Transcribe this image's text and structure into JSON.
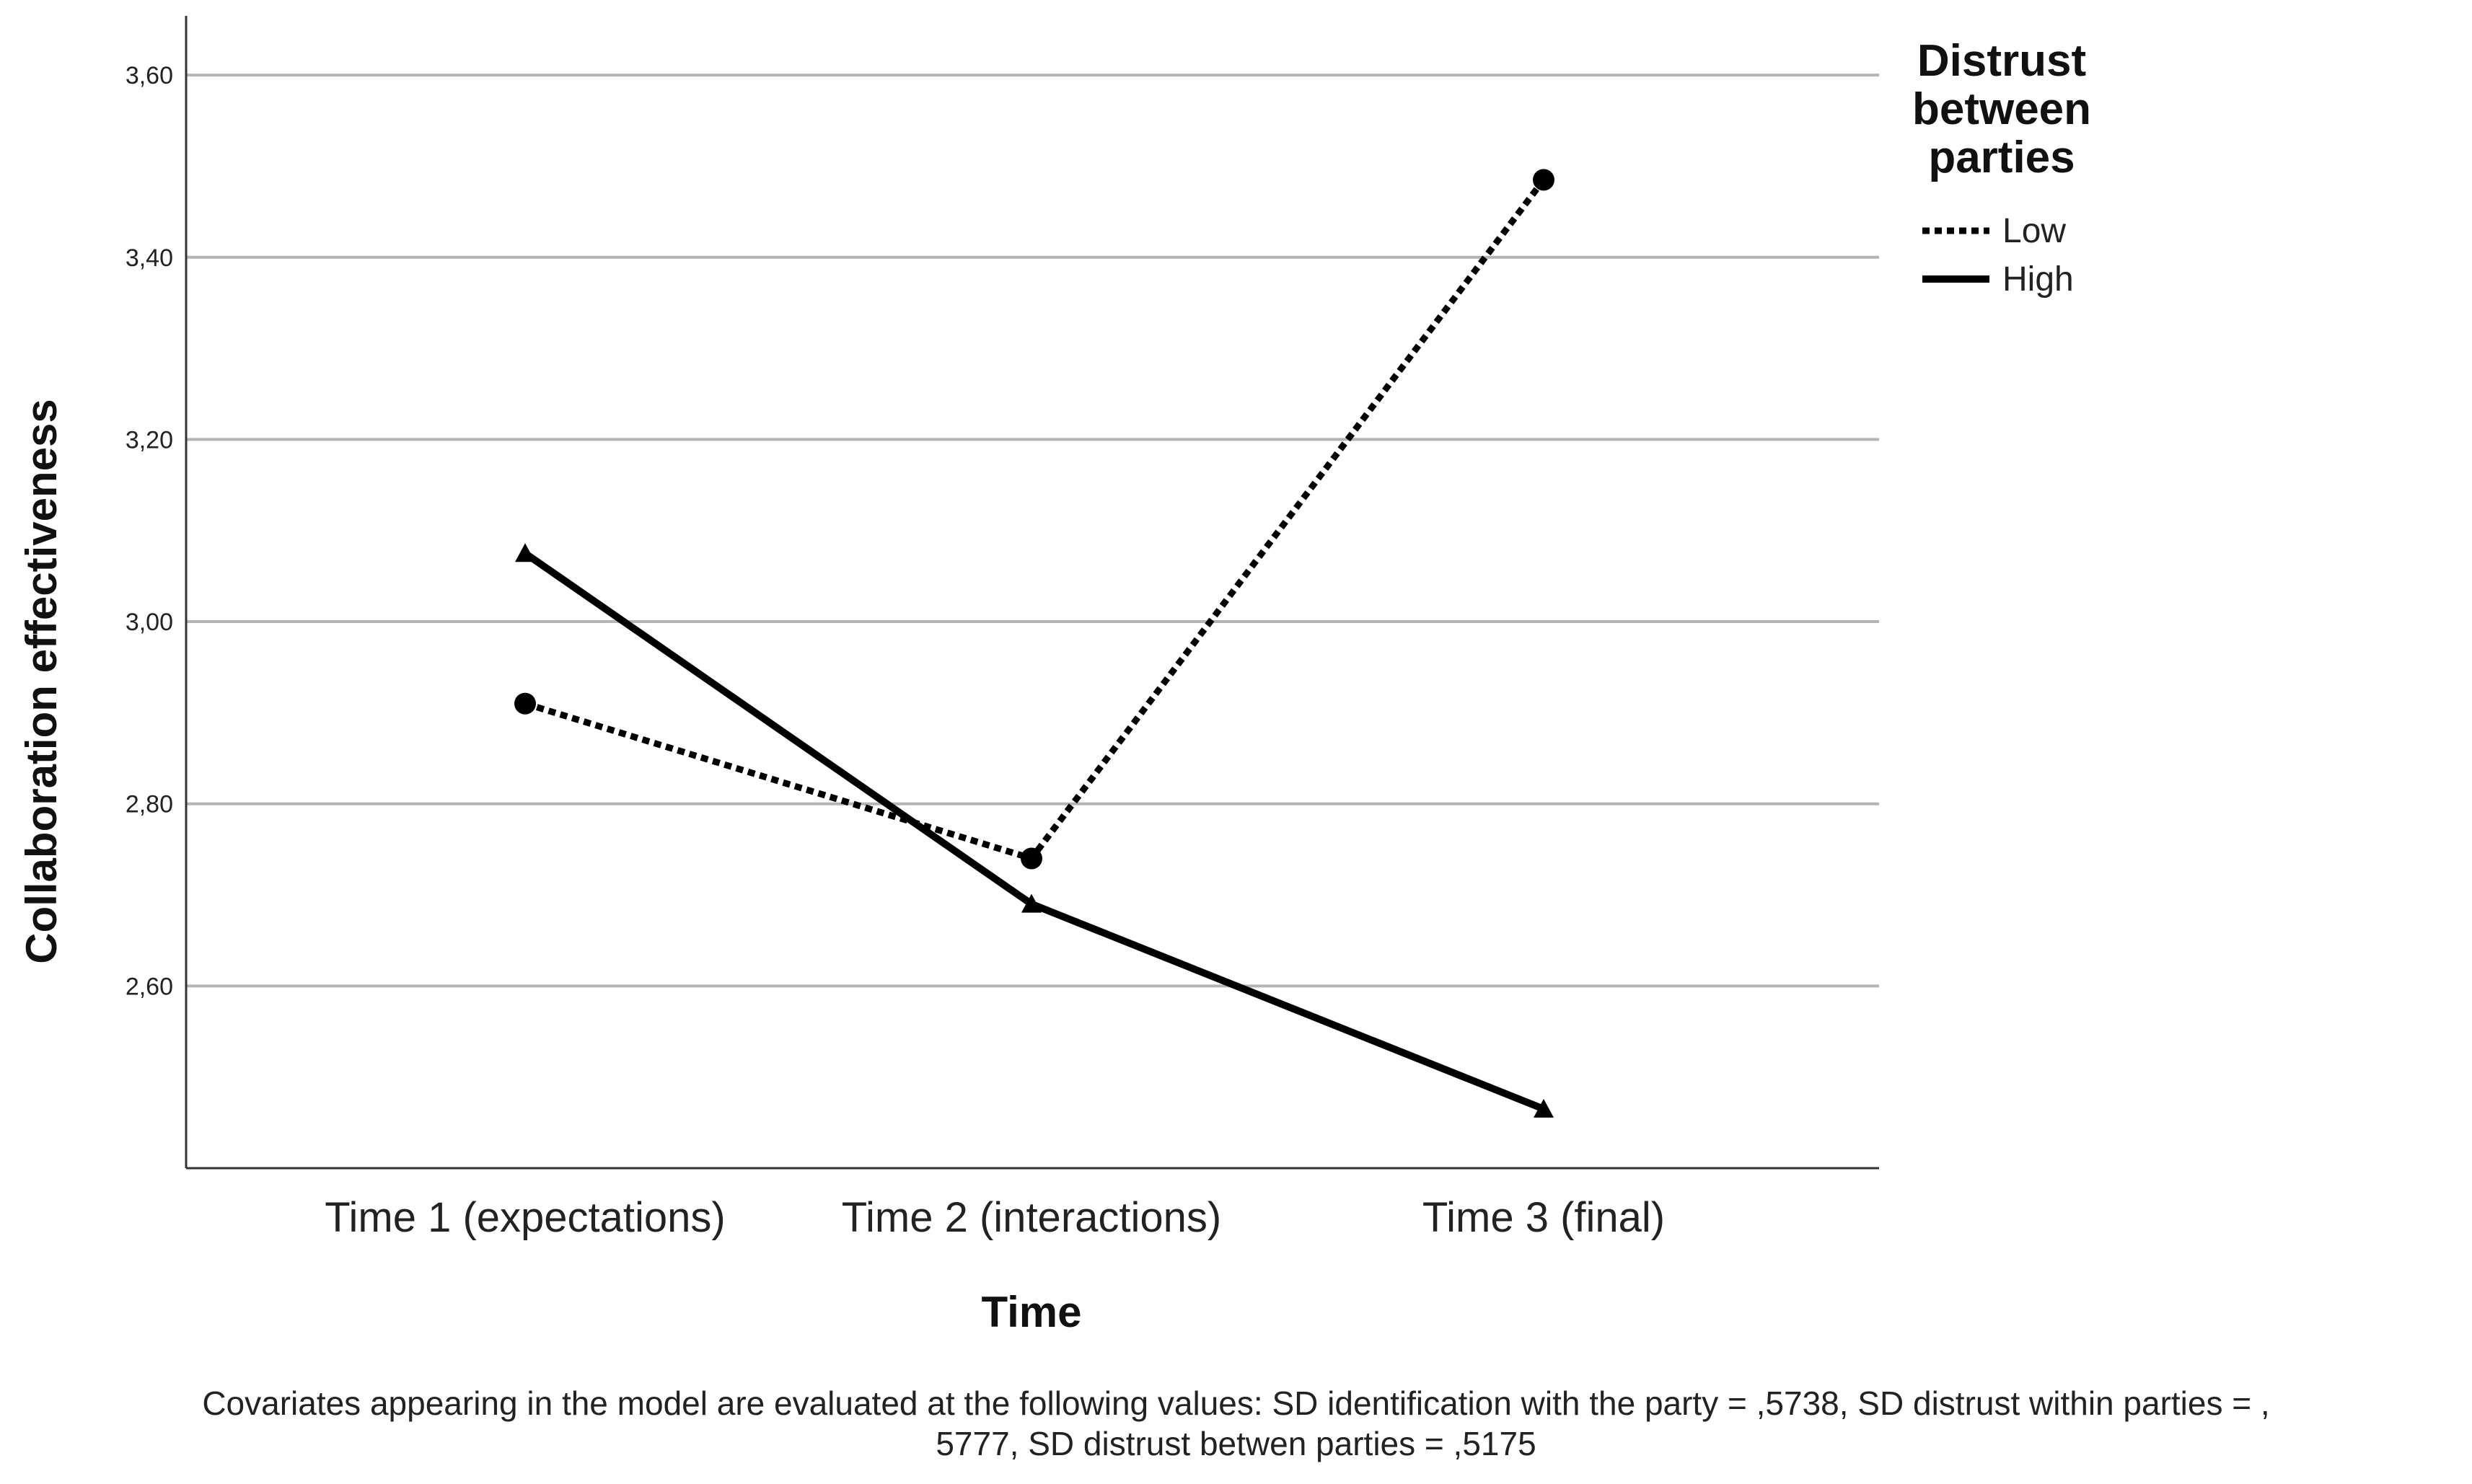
{
  "chart_data": {
    "type": "line",
    "title": "",
    "xlabel": "Time",
    "ylabel": "Collaboration effectiveness",
    "categories": [
      "Time 1 (expectations)",
      "Time 2 (interactions)",
      "Time 3 (final)"
    ],
    "ylim": [
      2.4,
      3.665
    ],
    "yticks": [
      2.6,
      2.8,
      3.0,
      3.2,
      3.4,
      3.6
    ],
    "ytick_labels": [
      "2,60",
      "2,80",
      "3,00",
      "3,20",
      "3,40",
      "3,60"
    ],
    "grid": true,
    "legend": {
      "title_lines": [
        "Distrust",
        "between",
        "parties"
      ],
      "placement": "right"
    },
    "series": [
      {
        "name": "Low",
        "style": "dotted",
        "marker": "circle",
        "values": [
          2.91,
          2.74,
          3.485
        ]
      },
      {
        "name": "High",
        "style": "solid",
        "marker": "triangle",
        "values": [
          3.075,
          2.69,
          2.465
        ]
      }
    ],
    "footnote": [
      "Covariates appearing in the model are evaluated at the following values: SD identification with the party = ,5738, SD distrust within parties = ,",
      "5777, SD distrust betwen parties = ,5175"
    ],
    "colors": {
      "line": "#000000",
      "grid": "#b4b4b4",
      "axis": "#333333",
      "text": "#222222"
    }
  }
}
